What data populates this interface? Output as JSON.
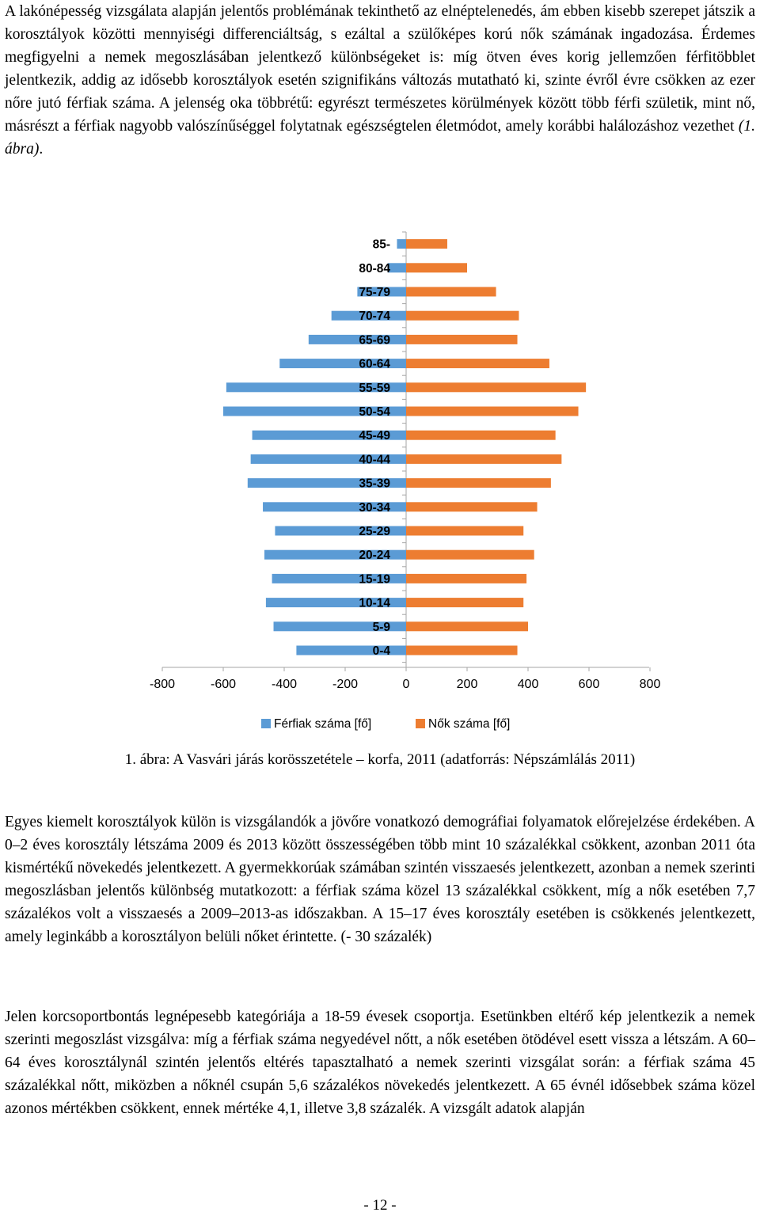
{
  "text": {
    "p1_a": "A lakónépesség vizsgálata alapján jelentős problémának tekinthető az elnéptelenedés, ám ebben kisebb szerepet játszik a korosztályok közötti mennyiségi differenciáltság, s ezáltal a szülőképes korú nők számának ingadozása. Érdemes megfigyelni a nemek megoszlásában jelentkező különbségeket is: míg ötven éves korig jellemzően férfitöbblet jelentkezik, addig az idősebb korosztályok esetén szignifikáns változás mutatható ki, szinte évről évre csökken az ezer nőre jutó férfiak száma. A jelenség oka többrétű: egyrészt természetes körülmények között több férfi születik, mint nő, másrészt a férfiak nagyobb valószínűséggel folytatnak egészségtelen életmódot, amely korábbi halálozáshoz vezethet ",
    "p1_ref": "(1. ábra)",
    "p1_end": ".",
    "p2": "Egyes kiemelt korosztályok külön is vizsgálandók a jövőre vonatkozó demográfiai folyamatok előrejelzése érdekében. A 0–2 éves korosztály létszáma 2009 és 2013 között összességében több mint 10 százalékkal csökkent, azonban 2011 óta kismértékű növekedés jelentkezett. A gyermekkorúak számában szintén visszaesés jelentkezett, azonban a nemek szerinti megoszlásban jelentős különbség mutatkozott: a férfiak száma közel 13 százalékkal csökkent, míg a nők esetében 7,7 százalékos volt a visszaesés a 2009–2013-as időszakban. A 15–17 éves korosztály esetében is csökkenés jelentkezett, amely leginkább a korosztályon belüli nőket érintette. (- 30 százalék)",
    "p3": "Jelen korcsoportbontás legnépesebb kategóriája a 18-59 évesek csoportja. Esetünkben eltérő kép jelentkezik a nemek szerinti megoszlást vizsgálva: míg a férfiak száma negyedével nőtt, a nők esetében ötödével esett vissza a létszám. A 60–64 éves korosztálynál szintén jelentős eltérés tapasztalható a nemek szerinti vizsgálat során: a férfiak száma 45 százalékkal nőtt, miközben a nőknél csupán 5,6 százalékos növekedés jelentkezett. A 65 évnél idősebbek száma közel azonos mértékben csökkent, ennek mértéke 4,1, illetve 3,8 százalék. A vizsgált adatok alapján",
    "caption": "1.   ábra: A Vasvári járás korösszetétele – korfa, 2011 (adatforrás: Népszámlálás 2011)",
    "page_number": "- 12 -"
  },
  "colors": {
    "male": "#5B9BD5",
    "female": "#ED7D31",
    "axis": "#a6a6a6"
  },
  "chart_data": {
    "type": "bar",
    "orientation": "horizontal",
    "categories": [
      "0-4",
      "5-9",
      "10-14",
      "15-19",
      "20-24",
      "25-29",
      "30-34",
      "35-39",
      "40-44",
      "45-49",
      "50-54",
      "55-59",
      "60-64",
      "65-69",
      "70-74",
      "75-79",
      "80-84",
      "85-"
    ],
    "series": [
      {
        "name": "Férfiak száma [fő]",
        "values": [
          -360,
          -435,
          -460,
          -440,
          -465,
          -430,
          -470,
          -520,
          -510,
          -505,
          -600,
          -590,
          -415,
          -320,
          -245,
          -160,
          -60,
          -30
        ]
      },
      {
        "name": "Nők száma [fő]",
        "values": [
          365,
          400,
          385,
          395,
          420,
          385,
          430,
          475,
          510,
          490,
          565,
          590,
          470,
          365,
          370,
          295,
          200,
          135
        ]
      }
    ],
    "xticks": [
      "-800",
      "-600",
      "-400",
      "-200",
      "0",
      "200",
      "400",
      "600",
      "800"
    ],
    "xlim": [
      -800,
      800
    ],
    "legend": "bottom",
    "grid": false
  }
}
